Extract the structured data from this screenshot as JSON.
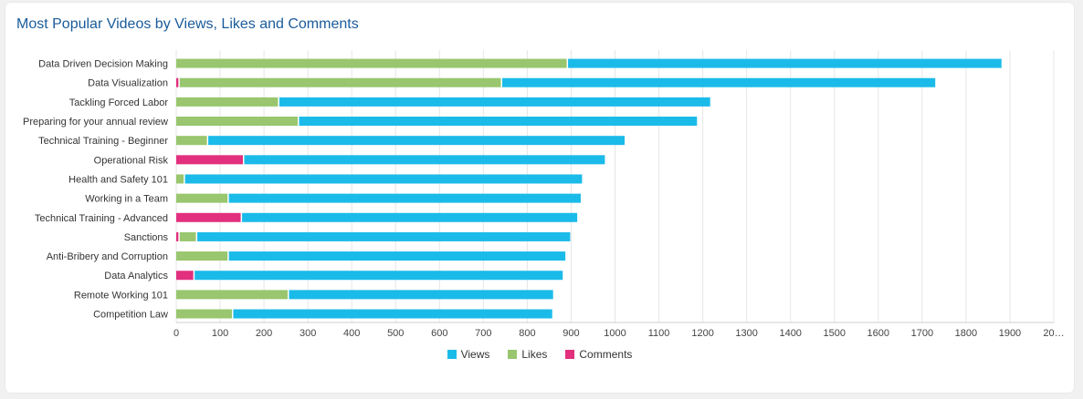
{
  "card": {
    "title": "Most Popular Videos by Views, Likes and Comments"
  },
  "colors": {
    "views": "#1bbbe9",
    "likes": "#99c66e",
    "comments": "#e2307e",
    "title": "#1a5b9a"
  },
  "chart_data": {
    "type": "bar",
    "orientation": "horizontal",
    "stacked": true,
    "title": "Most Popular Videos by Views, Likes and Comments",
    "categories": [
      "Data Driven Decision Making",
      "Data Visualization",
      "Tackling Forced Labor",
      "Preparing for your annual review",
      "Technical Training - Beginner",
      "Operational Risk",
      "Health and Safety 101",
      "Working in a Team",
      "Technical Training - Advanced",
      "Sanctions",
      "Anti-Bribery and Corruption",
      "Data Analytics",
      "Remote Working 101",
      "Competition Law"
    ],
    "series": [
      {
        "name": "Comments",
        "values": [
          0,
          8,
          0,
          0,
          0,
          155,
          0,
          0,
          150,
          8,
          0,
          42,
          0,
          0
        ]
      },
      {
        "name": "Likes",
        "values": [
          893,
          735,
          235,
          280,
          73,
          0,
          20,
          120,
          0,
          40,
          120,
          0,
          257,
          130
        ]
      },
      {
        "name": "Views",
        "values": [
          991,
          990,
          985,
          910,
          952,
          825,
          908,
          805,
          767,
          853,
          770,
          842,
          605,
          730
        ]
      }
    ],
    "xlim": [
      0,
      2000
    ],
    "xticks": [
      "0",
      "100",
      "200",
      "300",
      "400",
      "500",
      "600",
      "700",
      "800",
      "900",
      "1000",
      "1100",
      "1200",
      "1300",
      "1400",
      "1500",
      "1600",
      "1700",
      "1800",
      "1900",
      "20…"
    ],
    "grid": true,
    "legend_position": "bottom",
    "legend": [
      "Views",
      "Likes",
      "Comments"
    ]
  }
}
